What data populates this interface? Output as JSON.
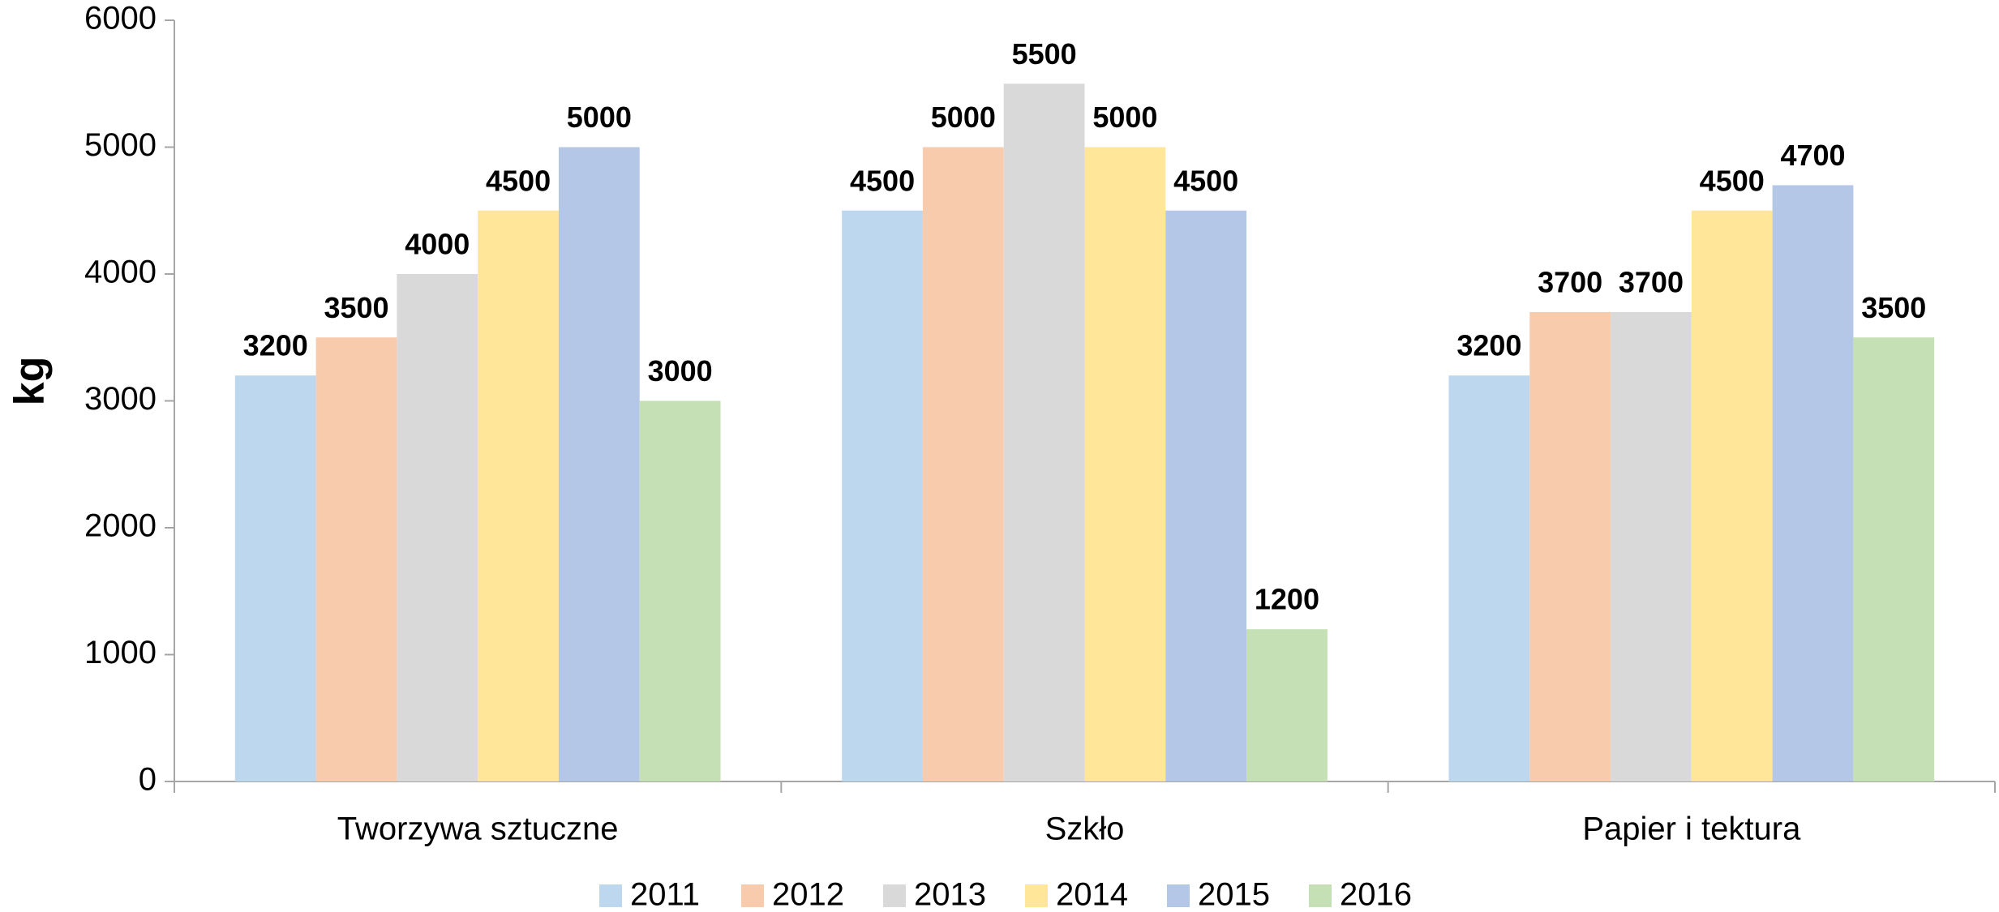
{
  "chart_data": {
    "type": "bar",
    "y_label": "kg",
    "categories": [
      "Tworzywa sztuczne",
      "Szkło",
      "Papier i tektura"
    ],
    "series": [
      {
        "name": "2011",
        "color": "#bdd7ee",
        "values": [
          3200,
          4500,
          3200
        ]
      },
      {
        "name": "2012",
        "color": "#f8cbad",
        "values": [
          3500,
          5000,
          3700
        ]
      },
      {
        "name": "2013",
        "color": "#d9d9d9",
        "values": [
          4000,
          5500,
          3700
        ]
      },
      {
        "name": "2014",
        "color": "#ffe699",
        "values": [
          4500,
          5000,
          4500
        ]
      },
      {
        "name": "2015",
        "color": "#b4c7e7",
        "values": [
          5000,
          4500,
          4700
        ]
      },
      {
        "name": "2016",
        "color": "#c5e0b4",
        "values": [
          3000,
          1200,
          3500
        ]
      }
    ],
    "ylim": [
      0,
      6000
    ],
    "yticks": [
      0,
      1000,
      2000,
      3000,
      4000,
      5000,
      6000
    ],
    "grid": false,
    "legend": "bottom"
  }
}
